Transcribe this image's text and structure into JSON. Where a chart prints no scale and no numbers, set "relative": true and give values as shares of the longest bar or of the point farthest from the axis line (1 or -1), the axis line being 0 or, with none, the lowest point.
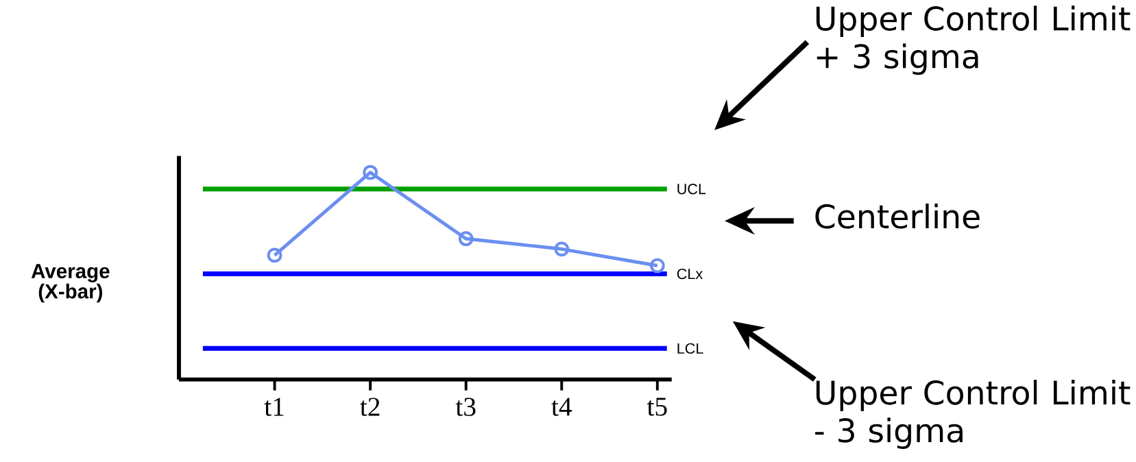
{
  "chart_data": {
    "type": "line",
    "relative": true,
    "ylabel": "Average (X-bar)",
    "categories": [
      "t1",
      "t2",
      "t3",
      "t4",
      "t5"
    ],
    "series": [
      {
        "color": "#6b8ff0",
        "values": [
          0.6,
          1,
          0.68,
          0.63,
          0.55
        ]
      }
    ],
    "marker": "circle",
    "line_style": "solid",
    "grid": false,
    "ref_lines": [
      {
        "axis": "y",
        "value": 0.92,
        "label": "UCL",
        "color": "#00a000"
      },
      {
        "axis": "y",
        "value": 0.51,
        "label": "CLx",
        "color": "#0000ff"
      },
      {
        "axis": "y",
        "value": 0.15,
        "label": "LCL",
        "color": "#0000ff"
      }
    ],
    "annotations": [
      "Upper Control Limit + 3 sigma",
      "Centerline",
      "Upper Control Limit - 3 sigma"
    ]
  }
}
